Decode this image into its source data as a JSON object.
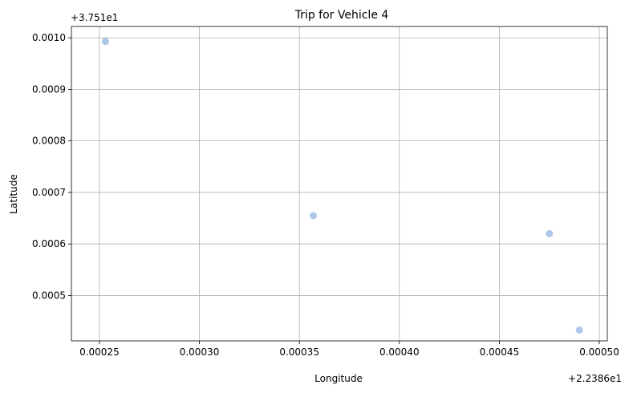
{
  "chart_data": {
    "type": "scatter",
    "title": "Trip for Vehicle 4",
    "xlabel": "Longitude",
    "ylabel": "Latitude",
    "x_offset_label": "+2.2386e1",
    "y_offset_label": "+3.751e1",
    "xlim": [
      0.000236,
      0.000504
    ],
    "ylim": [
      0.000412,
      0.001022
    ],
    "x_ticks": [
      0.00025,
      0.0003,
      0.00035,
      0.0004,
      0.00045,
      0.0005
    ],
    "x_tick_labels": [
      "0.00025",
      "0.00030",
      "0.00035",
      "0.00040",
      "0.00045",
      "0.00050"
    ],
    "y_ticks": [
      0.0005,
      0.0006,
      0.0007,
      0.0008,
      0.0009,
      0.001
    ],
    "y_tick_labels": [
      "0.0005",
      "0.0006",
      "0.0007",
      "0.0008",
      "0.0009",
      "0.0010"
    ],
    "grid": true,
    "marker_color": "#aec7e8",
    "points": [
      {
        "x": 0.000253,
        "y": 0.000993
      },
      {
        "x": 0.000357,
        "y": 0.000655
      },
      {
        "x": 0.000475,
        "y": 0.00062
      },
      {
        "x": 0.00049,
        "y": 0.000433
      }
    ]
  }
}
